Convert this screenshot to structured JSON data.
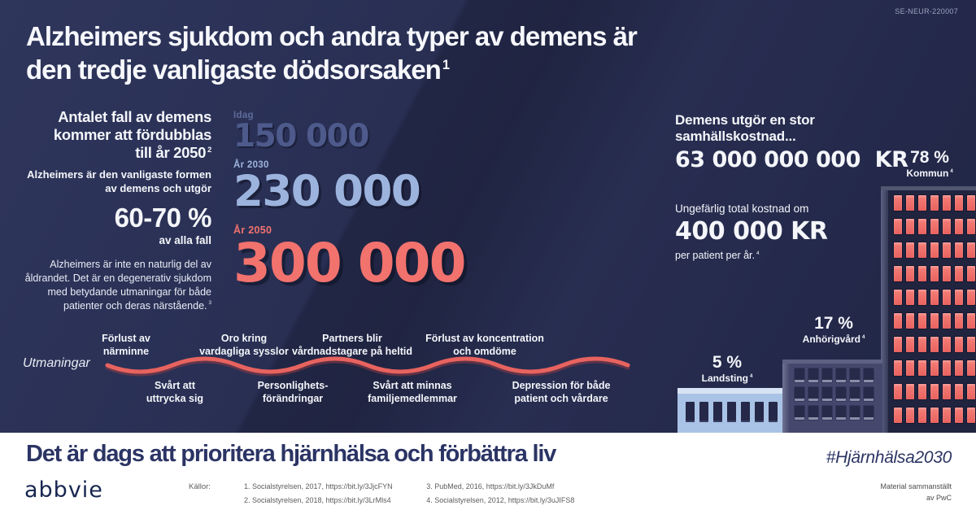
{
  "meta": {
    "code": "SE-NEUR-220007"
  },
  "header": {
    "title": "Alzheimers sjukdom och andra typer av demens är\nden tredje vanligaste dödsorsaken",
    "title_sup": "1"
  },
  "left_panel": {
    "heading": "Antalet fall av demens\nkommer att fördubblas\ntill år 2050",
    "heading_sup": "2",
    "subheading": "Alzheimers är den vanligaste formen av demens och utgör",
    "stat": "60-70 %",
    "stat_caption": "av alla fall",
    "paragraph": "Alzheimers är inte en naturlig del av åldrandet. Det är en degenerativ sjukdom med betydande utmaningar för både patienter och deras närstående.",
    "paragraph_sup": "3"
  },
  "projection": {
    "items": [
      {
        "label": "Idag",
        "value": "150 000"
      },
      {
        "label": "År 2030",
        "value": "230 000"
      },
      {
        "label": "År 2050",
        "value": "300 000"
      }
    ]
  },
  "cost_panel": {
    "heading": "Demens utgör en stor samhällskostnad...",
    "total": "63 000 000 000  KR",
    "per_patient_intro": "Ungefärlig total kostnad om",
    "per_patient_value": "400 000 KR",
    "per_patient_caption": "per patient per år.",
    "per_patient_sup": "4"
  },
  "cost_split": [
    {
      "percent": "78 %",
      "label": "Kommun",
      "sup": "4"
    },
    {
      "percent": "17 %",
      "label": "Anhörigvård",
      "sup": "4"
    },
    {
      "percent": "5 %",
      "label": "Landsting",
      "sup": "4"
    }
  ],
  "challenges": {
    "label": "Utmaningar",
    "above": [
      "Förlust av\nnärminne",
      "Oro kring\nvardagliga sysslor",
      "Partners blir\nvårdnadstagare på heltid",
      "Förlust av koncentration\noch omdöme"
    ],
    "below": [
      "Svårt att\nuttrycka sig",
      "Personlighets-\nförändringar",
      "Svårt att minnas\nfamiljemedlemmar",
      "Depression för både\npatient och vårdare"
    ]
  },
  "footer": {
    "title": "Det är dags att prioritera hjärnhälsa och förbättra liv",
    "hashtag": "#Hjärnhälsa2030",
    "brand": "abbvie",
    "sources_label": "Källor:",
    "sources": [
      "1. Socialstyrelsen, 2017, https://bit.ly/3JjcFYN",
      "2. Socialstyrelsen, 2018, https://bit.ly/3LrMls4",
      "3. PubMed, 2016, https://bit.ly/3JkDuMf",
      "4. Socialstyrelsen, 2012, https://bit.ly/3uJIFS8"
    ],
    "credit": "Material sammanställt\nav PwC"
  },
  "colors": {
    "background": "#232848",
    "number_today": "#4d5a8b",
    "number_2030": "#9cb4dd",
    "number_2050": "#f2726e",
    "wave": "#e8635f",
    "window_lit": "#ef6e6a",
    "building_medium": "#45486c",
    "building_small": "#a9c3e6",
    "footer_navy": "#2b3464",
    "white": "#ffffff"
  }
}
